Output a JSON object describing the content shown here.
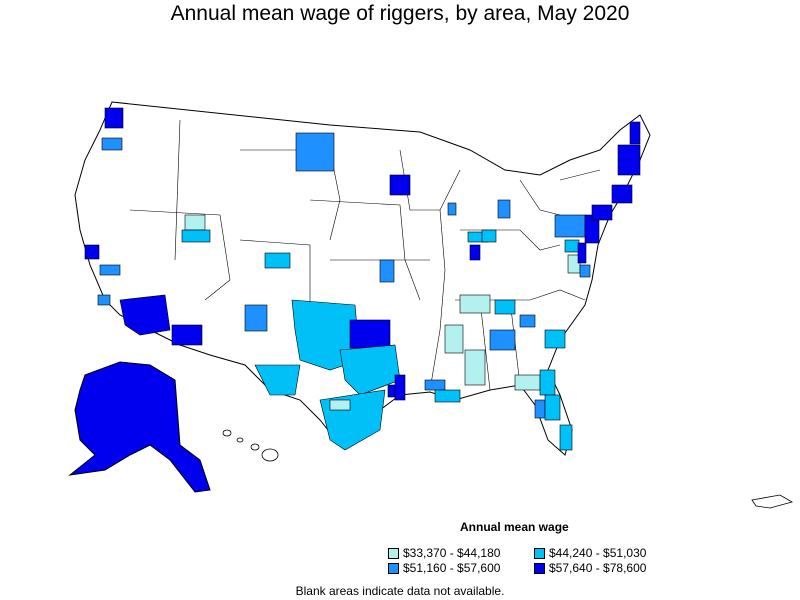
{
  "title": "Annual mean wage of riggers, by area, May 2020",
  "legend": {
    "title": "Annual mean wage",
    "items": [
      {
        "label": "$33,370 - $44,180",
        "color": "#b3f0f0"
      },
      {
        "label": "$44,240 - $51,030",
        "color": "#00c0f8"
      },
      {
        "label": "$51,160 - $57,600",
        "color": "#1e90ff"
      },
      {
        "label": "$57,640 - $78,600",
        "color": "#0000ee"
      }
    ]
  },
  "note": "Blank areas indicate data not available.",
  "colors": {
    "blank": "#ffffff",
    "border": "#000000"
  }
}
